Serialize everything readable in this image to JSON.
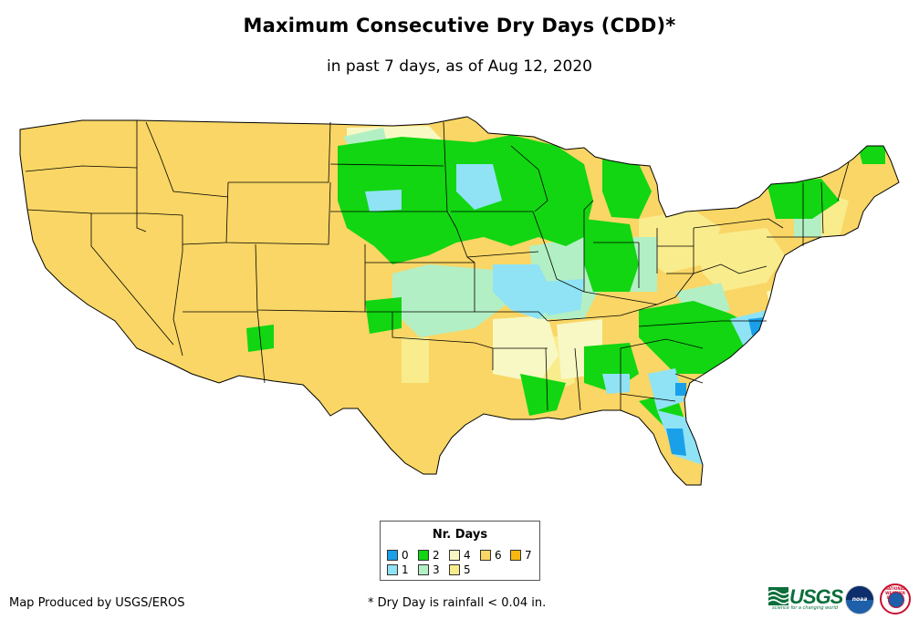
{
  "header": {
    "title": "Maximum Consecutive Dry Days (CDD)*",
    "subtitle": "in past 7 days, as of Aug 12, 2020"
  },
  "legend": {
    "title": "Nr. Days",
    "items": [
      {
        "label": "0",
        "color": "#1aa0e8"
      },
      {
        "label": "1",
        "color": "#8fe3f5"
      },
      {
        "label": "2",
        "color": "#11d611"
      },
      {
        "label": "3",
        "color": "#b3efc4"
      },
      {
        "label": "4",
        "color": "#f8f8c4"
      },
      {
        "label": "5",
        "color": "#f9ec8c"
      },
      {
        "label": "6",
        "color": "#f9d665"
      },
      {
        "label": "7",
        "color": "#f8b810"
      }
    ]
  },
  "footer": {
    "credit": "Map Produced by USGS/EROS",
    "note": "* Dry Day is rainfall < 0.04 in."
  },
  "logos": {
    "usgs_text": "USGS",
    "usgs_tagline": "science for a changing world",
    "noaa_text": "noaa",
    "nws_text": "NATIONAL WEATHER SERVICE"
  }
}
